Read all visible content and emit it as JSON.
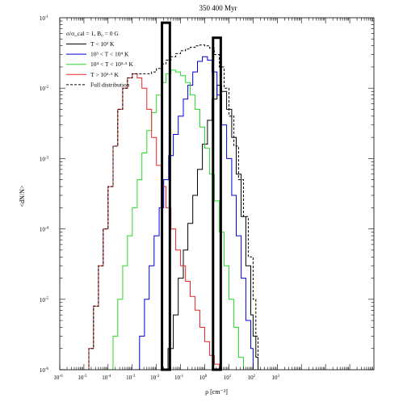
{
  "chart_data": {
    "type": "line",
    "title": "350 400 Myr",
    "xlabel": "ρ [cm⁻³]",
    "ylabel": "<dN/N>",
    "xscale": "log",
    "yscale": "log",
    "xlim": [
      1e-06,
      10000000.0
    ],
    "ylim": [
      1e-06,
      0.1
    ],
    "x_ticks": [
      {
        "v": 1e-06,
        "base": "10",
        "exp": "-6"
      },
      {
        "v": 1e-05,
        "base": "10",
        "exp": "-5"
      },
      {
        "v": 0.0001,
        "base": "10",
        "exp": "-4"
      },
      {
        "v": 0.001,
        "base": "10",
        "exp": "-3"
      },
      {
        "v": 0.01,
        "base": "10",
        "exp": "-2"
      },
      {
        "v": 0.1,
        "base": "10",
        "exp": "-1"
      },
      {
        "v": 1,
        "base": "10",
        "exp": "0"
      },
      {
        "v": 10,
        "base": "10",
        "exp": "1"
      },
      {
        "v": 100,
        "base": "10",
        "exp": "2"
      },
      {
        "v": 1000,
        "base": "10",
        "exp": "3"
      }
    ],
    "y_ticks": [
      {
        "v": 1e-06,
        "base": "10",
        "exp": "-6"
      },
      {
        "v": 1e-05,
        "base": "10",
        "exp": "-5"
      },
      {
        "v": 0.0001,
        "base": "10",
        "exp": "-4"
      },
      {
        "v": 0.001,
        "base": "10",
        "exp": "-3"
      },
      {
        "v": 0.01,
        "base": "10",
        "exp": "-2"
      },
      {
        "v": 0.1,
        "base": "10",
        "exp": "-1"
      }
    ],
    "legend": {
      "placement": "top-left",
      "header": "σ/σ_cal = 1,  B₀ = 0 G",
      "entries": [
        {
          "label": "T < 10³ K",
          "color": "#000000",
          "dash": false
        },
        {
          "label": "10³ < T < 10⁴ K",
          "color": "#0000dd",
          "dash": false
        },
        {
          "label": "10⁴ < T < 10⁵·⁵ K",
          "color": "#22dd22",
          "dash": false
        },
        {
          "label": "T > 10⁵·⁵ K",
          "color": "#ee2222",
          "dash": false
        },
        {
          "label": "Full distribution",
          "color": "#000000",
          "dash": true
        }
      ]
    },
    "highlight_boxes": [
      {
        "x": [
          0.017,
          0.036
        ],
        "y": [
          1e-06,
          0.085
        ]
      },
      {
        "x": [
          2.2,
          4.6
        ],
        "y": [
          1e-06,
          0.052
        ]
      }
    ],
    "series": [
      {
        "name": "T < 10³ K",
        "color": "#000000",
        "x": [
          0.02,
          0.03,
          0.05,
          0.08,
          0.13,
          0.2,
          0.32,
          0.5,
          0.8,
          1.3,
          2,
          3.2,
          5,
          8,
          13,
          20,
          32,
          50,
          80,
          100,
          130,
          160
        ],
        "y": [
          1e-06,
          2e-06,
          6e-06,
          2e-05,
          5e-05,
          0.00012,
          0.0003,
          0.0007,
          0.0016,
          0.0035,
          0.007,
          0.011,
          0.009,
          0.005,
          0.002,
          0.0006,
          0.00015,
          3e-05,
          6e-06,
          3e-06,
          1.5e-06,
          1e-06
        ]
      },
      {
        "name": "10³ < T < 10⁴ K",
        "color": "#0000dd",
        "x": [
          0.0013,
          0.002,
          0.0032,
          0.005,
          0.008,
          0.013,
          0.02,
          0.032,
          0.05,
          0.08,
          0.13,
          0.2,
          0.32,
          0.5,
          0.8,
          1.3,
          2,
          3.2,
          5,
          8,
          13,
          20,
          32,
          50,
          80,
          100
        ],
        "y": [
          1e-06,
          3e-06,
          1e-05,
          3e-05,
          8e-05,
          0.0002,
          0.0005,
          0.0011,
          0.0022,
          0.004,
          0.007,
          0.011,
          0.017,
          0.024,
          0.028,
          0.025,
          0.017,
          0.008,
          0.003,
          0.001,
          0.0003,
          8e-05,
          2e-05,
          5e-06,
          2e-06,
          1e-06
        ]
      },
      {
        "name": "10⁴ < T < 10⁵·⁵ K",
        "color": "#22dd22",
        "x": [
          0.0001,
          0.00016,
          0.00025,
          0.0004,
          0.00063,
          0.001,
          0.0016,
          0.0025,
          0.004,
          0.0063,
          0.01,
          0.016,
          0.025,
          0.04,
          0.063,
          0.1,
          0.16,
          0.25,
          0.4,
          0.63,
          1,
          1.6,
          2.5,
          4,
          6.3,
          10,
          16,
          25,
          40
        ],
        "y": [
          1e-06,
          3e-06,
          1e-05,
          3e-05,
          8e-05,
          0.0002,
          0.0005,
          0.0012,
          0.0025,
          0.0045,
          0.008,
          0.012,
          0.016,
          0.018,
          0.017,
          0.015,
          0.012,
          0.008,
          0.005,
          0.0028,
          0.0014,
          0.0006,
          0.00025,
          9e-05,
          3e-05,
          1e-05,
          4e-06,
          1.5e-06,
          1e-06
        ]
      },
      {
        "name": "T > 10⁵·⁵ K",
        "color": "#ee2222",
        "x": [
          1e-05,
          1.6e-05,
          2.5e-05,
          4e-05,
          6.3e-05,
          0.0001,
          0.00016,
          0.00025,
          0.0004,
          0.00063,
          0.001,
          0.0016,
          0.0025,
          0.004,
          0.0063,
          0.01,
          0.016,
          0.025,
          0.04,
          0.063,
          0.1,
          0.16,
          0.25,
          0.4,
          0.63,
          1,
          1.6,
          2.5,
          4
        ],
        "y": [
          1e-06,
          2e-06,
          8e-06,
          3e-05,
          0.0001,
          0.0004,
          0.0015,
          0.005,
          0.01,
          0.014,
          0.016,
          0.014,
          0.01,
          0.005,
          0.002,
          0.0008,
          0.0004,
          0.0002,
          0.0001,
          5e-05,
          3e-05,
          1.8e-05,
          1.1e-05,
          7e-06,
          4e-06,
          2.5e-06,
          1.6e-06,
          1.2e-06,
          1e-06
        ]
      },
      {
        "name": "Full distribution",
        "color": "#000000",
        "dashed": true,
        "x": [
          1e-05,
          1.6e-05,
          2.5e-05,
          4e-05,
          6.3e-05,
          0.0001,
          0.00016,
          0.00025,
          0.0004,
          0.00063,
          0.001,
          0.0016,
          0.0025,
          0.004,
          0.0063,
          0.01,
          0.016,
          0.025,
          0.04,
          0.063,
          0.1,
          0.16,
          0.25,
          0.4,
          0.63,
          1,
          1.6,
          2.5,
          4,
          6.3,
          10,
          16,
          25,
          40,
          63,
          100,
          130,
          160
        ],
        "y": [
          1e-06,
          2e-06,
          8e-06,
          3e-05,
          0.0001,
          0.0004,
          0.0015,
          0.005,
          0.01,
          0.014,
          0.016,
          0.016,
          0.016,
          0.016,
          0.017,
          0.019,
          0.022,
          0.025,
          0.028,
          0.031,
          0.034,
          0.036,
          0.038,
          0.04,
          0.041,
          0.04,
          0.037,
          0.03,
          0.02,
          0.01,
          0.004,
          0.0015,
          0.0005,
          0.00015,
          4e-05,
          1e-05,
          3e-06,
          1e-06
        ]
      }
    ]
  }
}
